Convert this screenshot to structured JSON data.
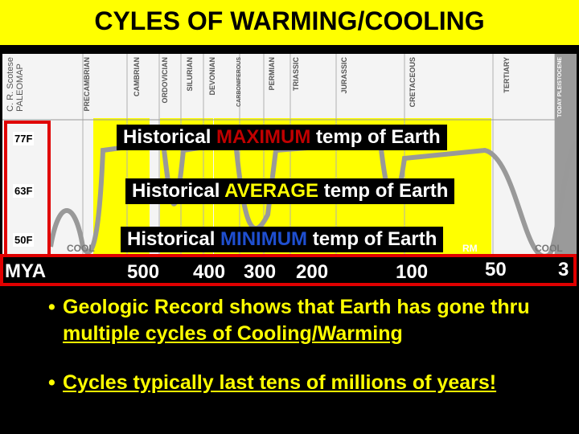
{
  "title": "CYLES OF WARMING/COOLING",
  "credit": {
    "line1": "C. R. Scotese",
    "line2": "PALEOMAP"
  },
  "periods": [
    "PRECAMBRIAN",
    "CAMBRIAN",
    "ORDOVICIAN",
    "SILURIAN",
    "DEVONIAN",
    "CARBONIFEROUS",
    "PERMIAN",
    "TRIASSIC",
    "JURASSIC",
    "CRETACEOUS",
    "TERTIARY",
    "TODAY PLEISTOCENE"
  ],
  "temps": {
    "max": "77F",
    "avg": "63F",
    "min": "50F"
  },
  "labels": {
    "max_pre": "Historical ",
    "max_hl": "MAXIMUM",
    "max_post": " temp of Earth",
    "avg_pre": "Historical ",
    "avg_hl": "AVERAGE",
    "avg_post": " temp of Earth",
    "min_pre": "Historical ",
    "min_hl": "MINIMUM",
    "min_post": " temp of Earth"
  },
  "axis": {
    "label": "MYA",
    "ticks": [
      "500",
      "400",
      "300",
      "200",
      "100",
      "50",
      "3"
    ]
  },
  "cool_labels": [
    "COOL",
    "COOL"
  ],
  "warm_fragment": "RM",
  "bullets": [
    {
      "pre": "Geologic Record shows that Earth has gone thru ",
      "u": "multiple cycles of Cooling/Warming",
      "post": ""
    },
    {
      "pre": "",
      "u": "Cycles typically last tens of millions of years!",
      "post": ""
    }
  ],
  "colors": {
    "title_bg": "#ffff00",
    "accent_red": "#e00000",
    "warm_band": "#ffff00"
  }
}
